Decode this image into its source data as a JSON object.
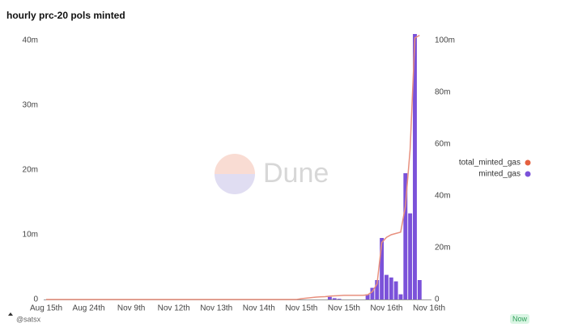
{
  "chart_data": {
    "type": "bar_line",
    "title": "hourly prc-20 pols minted",
    "watermark": "Dune",
    "author": "@satsx",
    "badge": "Now",
    "categories": [
      "Aug 15th",
      null,
      null,
      null,
      null,
      null,
      null,
      null,
      null,
      "Aug 24th",
      null,
      null,
      null,
      null,
      null,
      null,
      null,
      null,
      "Nov 9th",
      null,
      null,
      null,
      null,
      null,
      null,
      null,
      null,
      "Nov 12th",
      null,
      null,
      null,
      null,
      null,
      null,
      null,
      null,
      "Nov 13th",
      null,
      null,
      null,
      null,
      null,
      null,
      null,
      null,
      "Nov 14th",
      null,
      null,
      null,
      null,
      null,
      null,
      null,
      null,
      "Nov 15th",
      null,
      null,
      null,
      null,
      null,
      null,
      null,
      null,
      "Nov 15th",
      null,
      null,
      null,
      null,
      null,
      null,
      null,
      null,
      "Nov 16th",
      null,
      null,
      null,
      null,
      null,
      null,
      null,
      null,
      "Nov 16th"
    ],
    "series": [
      {
        "name": "total_minted_gas",
        "color": "#e8907e",
        "legend_color": "#e5603f",
        "axis": "y2",
        "values": [
          0,
          0,
          0,
          0,
          0,
          0,
          0,
          0,
          0,
          0,
          0,
          0,
          0,
          0,
          0,
          0,
          0,
          0,
          0,
          0,
          0,
          0,
          0,
          0,
          0,
          0,
          0,
          0,
          0,
          0,
          0,
          0,
          0,
          0,
          0,
          0,
          0,
          0,
          0,
          0,
          0,
          0,
          0,
          0,
          0,
          0,
          0,
          0,
          0,
          0,
          0,
          0,
          0,
          0,
          300000,
          500000,
          700000,
          900000,
          1000000,
          1100000,
          1300000,
          1400000,
          1500000,
          1600000,
          1600000,
          1600000,
          1600000,
          1600000,
          1800000,
          3000000,
          6000000,
          22000000,
          24000000,
          25000000,
          25500000,
          26000000,
          36000000,
          58000000,
          101000000,
          102000000,
          null,
          null
        ]
      },
      {
        "name": "minted_gas",
        "color": "#7b52d9",
        "legend_color": "#7b52d9",
        "axis": "y",
        "values": [
          0,
          0,
          0,
          0,
          0,
          0,
          0,
          0,
          0,
          0,
          0,
          0,
          0,
          0,
          0,
          0,
          0,
          0,
          0,
          0,
          0,
          0,
          0,
          0,
          0,
          0,
          0,
          0,
          0,
          0,
          0,
          0,
          0,
          0,
          0,
          0,
          0,
          0,
          0,
          0,
          0,
          0,
          0,
          0,
          0,
          0,
          0,
          0,
          0,
          0,
          0,
          0,
          0,
          0,
          0,
          0,
          0,
          0,
          0,
          0,
          400000,
          200000,
          100000,
          0,
          0,
          0,
          0,
          0,
          800000,
          1800000,
          3000000,
          9500000,
          3800000,
          3400000,
          2800000,
          800000,
          19500000,
          13300000,
          41000000,
          3000000,
          0,
          0
        ]
      }
    ],
    "ylim": [
      0,
      40000000
    ],
    "yticks": [
      0,
      {
        "value": 10000000,
        "label": "10m"
      },
      {
        "value": 20000000,
        "label": "20m"
      },
      {
        "value": 30000000,
        "label": "30m"
      },
      {
        "value": 40000000,
        "label": "40m"
      }
    ],
    "y2lim": [
      0,
      100000000
    ],
    "y2ticks": [
      0,
      {
        "value": 20000000,
        "label": "20m"
      },
      {
        "value": 40000000,
        "label": "40m"
      },
      {
        "value": 60000000,
        "label": "60m"
      },
      {
        "value": 80000000,
        "label": "80m"
      },
      {
        "value": 100000000,
        "label": "100m"
      }
    ],
    "legend": "right"
  }
}
